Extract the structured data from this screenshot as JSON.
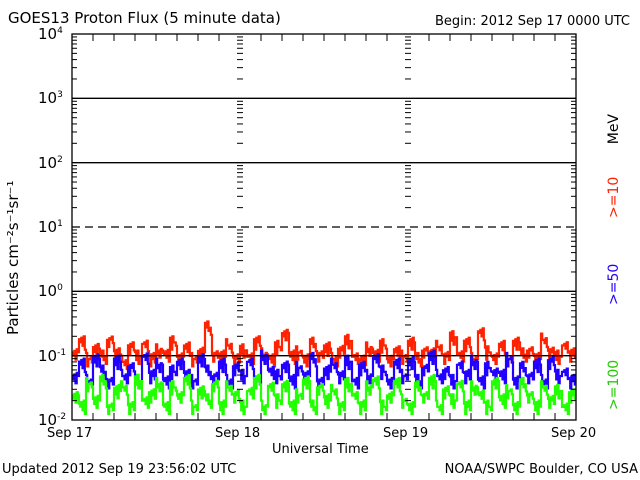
{
  "chart_data": {
    "type": "line",
    "title": "GOES13 Proton Flux (5 minute data)",
    "begin": "Begin: 2012 Sep 17 0000 UTC",
    "xlabel": "Universal Time",
    "ylabel": "Particles cm⁻²s⁻¹sr⁻¹",
    "yscale": "log",
    "ylim": [
      0.01,
      10000
    ],
    "ytick_labels": [
      {
        "base": "10",
        "exp": "4",
        "value": 10000
      },
      {
        "base": "10",
        "exp": "3",
        "value": 1000
      },
      {
        "base": "10",
        "exp": "2",
        "value": 100
      },
      {
        "base": "10",
        "exp": "1",
        "value": 10
      },
      {
        "base": "10",
        "exp": "0",
        "value": 1
      },
      {
        "base": "10",
        "exp": "-1",
        "value": 0.1
      },
      {
        "base": "10",
        "exp": "-2",
        "value": 0.01
      }
    ],
    "xlim_hours": [
      0,
      72
    ],
    "xtick_labels": [
      {
        "label": "Sep 17",
        "hour": 0
      },
      {
        "label": "Sep 18",
        "hour": 24
      },
      {
        "label": "Sep 19",
        "hour": 48
      },
      {
        "label": "Sep 20",
        "hour": 72
      }
    ],
    "threshold_lines": [
      {
        "value": 1000,
        "style": "solid"
      },
      {
        "value": 100,
        "style": "solid"
      },
      {
        "value": 10,
        "style": "dashed"
      },
      {
        "value": 1,
        "style": "solid"
      },
      {
        "value": 0.1,
        "style": "solid"
      }
    ],
    "series": [
      {
        "name": ">=10",
        "unit": "MeV",
        "color": "#ff2200",
        "values": [
          0.14,
          0.2,
          0.11,
          0.16,
          0.12,
          0.22,
          0.13,
          0.1,
          0.17,
          0.12,
          0.19,
          0.11,
          0.15,
          0.13,
          0.2,
          0.12,
          0.16,
          0.11,
          0.14,
          0.34,
          0.13,
          0.12,
          0.18,
          0.11,
          0.15,
          0.12,
          0.2,
          0.13,
          0.11,
          0.17,
          0.28,
          0.12,
          0.14,
          0.11,
          0.19,
          0.13,
          0.16,
          0.11,
          0.15,
          0.21,
          0.12,
          0.1,
          0.16,
          0.13,
          0.18,
          0.11,
          0.14,
          0.12,
          0.2,
          0.11,
          0.15,
          0.13,
          0.17,
          0.12,
          0.24,
          0.13,
          0.19,
          0.11,
          0.28,
          0.14,
          0.12,
          0.17,
          0.11,
          0.2,
          0.13,
          0.15,
          0.11,
          0.22,
          0.14,
          0.12,
          0.18,
          0.13
        ]
      },
      {
        "name": ">=50",
        "unit": "",
        "color": "#2200ff",
        "values": [
          0.06,
          0.09,
          0.05,
          0.11,
          0.07,
          0.05,
          0.1,
          0.06,
          0.08,
          0.05,
          0.12,
          0.06,
          0.09,
          0.05,
          0.07,
          0.1,
          0.06,
          0.05,
          0.11,
          0.07,
          0.06,
          0.09,
          0.05,
          0.08,
          0.06,
          0.1,
          0.05,
          0.12,
          0.07,
          0.06,
          0.09,
          0.05,
          0.08,
          0.06,
          0.11,
          0.05,
          0.07,
          0.09,
          0.06,
          0.1,
          0.05,
          0.08,
          0.06,
          0.11,
          0.07,
          0.05,
          0.09,
          0.06,
          0.1,
          0.05,
          0.08,
          0.12,
          0.06,
          0.07,
          0.05,
          0.09,
          0.06,
          0.1,
          0.05,
          0.08,
          0.07,
          0.06,
          0.11,
          0.05,
          0.08,
          0.06,
          0.09,
          0.05,
          0.1,
          0.06,
          0.07,
          0.05
        ]
      },
      {
        "name": ">=100",
        "unit": "",
        "color": "#22ff00",
        "values": [
          0.03,
          0.02,
          0.045,
          0.025,
          0.05,
          0.02,
          0.035,
          0.04,
          0.02,
          0.05,
          0.025,
          0.03,
          0.045,
          0.02,
          0.04,
          0.03,
          0.05,
          0.02,
          0.035,
          0.025,
          0.045,
          0.02,
          0.04,
          0.03,
          0.02,
          0.035,
          0.05,
          0.02,
          0.04,
          0.025,
          0.045,
          0.02,
          0.03,
          0.05,
          0.02,
          0.04,
          0.025,
          0.035,
          0.02,
          0.045,
          0.03,
          0.02,
          0.04,
          0.05,
          0.02,
          0.03,
          0.045,
          0.025,
          0.02,
          0.04,
          0.03,
          0.05,
          0.02,
          0.035,
          0.025,
          0.045,
          0.02,
          0.04,
          0.03,
          0.02,
          0.05,
          0.025,
          0.035,
          0.02,
          0.045,
          0.03,
          0.02,
          0.04,
          0.025,
          0.035,
          0.02,
          0.03
        ]
      }
    ]
  },
  "footer": {
    "updated": "Updated 2012 Sep 19 23:56:02 UTC",
    "credit": "NOAA/SWPC Boulder, CO USA"
  }
}
